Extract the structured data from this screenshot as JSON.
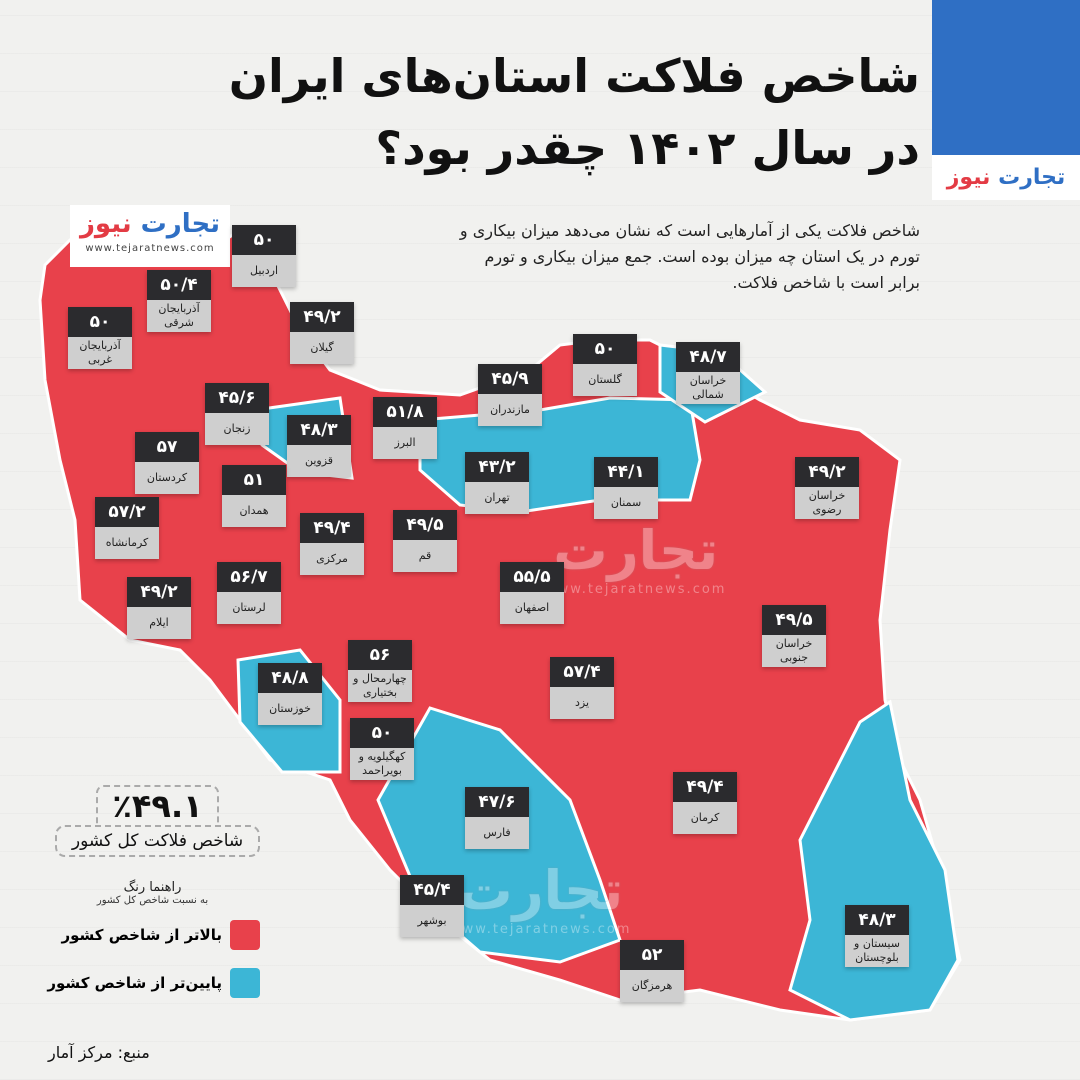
{
  "brand": {
    "logo_part1": "تجارت",
    "logo_part2": "نیوز",
    "url": "www.tejaratnews.com",
    "color_blue": "#2f6fc4",
    "color_red": "#e33b44"
  },
  "title": {
    "line1": "شاخص فلاکت استان‌های ایران",
    "line2": "در سال ۱۴۰۲ چقدر بود؟"
  },
  "description": "شاخص فلاکت یکی از آمارهایی است که نشان می‌دهد میزان بیکاری و تورم در یک استان چه میزان بوده است. جمع میزان بیکاری و تورم برابر است با شاخص فلاکت.",
  "national": {
    "value": "٪۴۹.۱",
    "label": "شاخص فلاکت کل کشور"
  },
  "legend": {
    "title": "راهنما رنگ",
    "subtitle": "به نسبت شاخص کل کشور",
    "items": [
      {
        "label": "بالاتر از شاخص کشور",
        "color": "#e8414b"
      },
      {
        "label": "پایین‌تر از شاخص کشور",
        "color": "#3cb6d6"
      }
    ]
  },
  "source": "منبع: مرکز آمار",
  "provinces": [
    {
      "name": "اردبیل",
      "value": "۵۰",
      "above": true
    },
    {
      "name": "آذربایجان شرقی",
      "value": "۵۰/۴",
      "above": true
    },
    {
      "name": "آذربایجان غربی",
      "value": "۵۰",
      "above": true
    },
    {
      "name": "گیلان",
      "value": "۴۹/۲",
      "above": true
    },
    {
      "name": "زنجان",
      "value": "۴۵/۶",
      "above": false
    },
    {
      "name": "قزوین",
      "value": "۴۸/۳",
      "above": false
    },
    {
      "name": "البرز",
      "value": "۵۱/۸",
      "above": true
    },
    {
      "name": "مازندران",
      "value": "۴۵/۹",
      "above": false
    },
    {
      "name": "گلستان",
      "value": "۵۰",
      "above": true
    },
    {
      "name": "خراسان شمالی",
      "value": "۴۸/۷",
      "above": false
    },
    {
      "name": "کردستان",
      "value": "۵۷",
      "above": true
    },
    {
      "name": "همدان",
      "value": "۵۱",
      "above": true
    },
    {
      "name": "کرمانشاه",
      "value": "۵۷/۲",
      "above": true
    },
    {
      "name": "تهران",
      "value": "۴۳/۲",
      "above": false
    },
    {
      "name": "سمنان",
      "value": "۴۴/۱",
      "above": false
    },
    {
      "name": "خراسان رضوی",
      "value": "۴۹/۲",
      "above": true
    },
    {
      "name": "مرکزی",
      "value": "۴۹/۴",
      "above": true
    },
    {
      "name": "قم",
      "value": "۴۹/۵",
      "above": true
    },
    {
      "name": "ایلام",
      "value": "۴۹/۲",
      "above": true
    },
    {
      "name": "لرستان",
      "value": "۵۶/۷",
      "above": true
    },
    {
      "name": "اصفهان",
      "value": "۵۵/۵",
      "above": true
    },
    {
      "name": "خراسان جنوبی",
      "value": "۴۹/۵",
      "above": true
    },
    {
      "name": "چهارمحال و بختیاری",
      "value": "۵۶",
      "above": true
    },
    {
      "name": "خوزستان",
      "value": "۴۸/۸",
      "above": false
    },
    {
      "name": "یزد",
      "value": "۵۷/۴",
      "above": true
    },
    {
      "name": "کهگیلویه و بویراحمد",
      "value": "۵۰",
      "above": true
    },
    {
      "name": "فارس",
      "value": "۴۷/۶",
      "above": false
    },
    {
      "name": "کرمان",
      "value": "۴۹/۴",
      "above": true
    },
    {
      "name": "بوشهر",
      "value": "۴۵/۴",
      "above": false
    },
    {
      "name": "هرمزگان",
      "value": "۵۲",
      "above": true
    },
    {
      "name": "سیستان و بلوچستان",
      "value": "۴۸/۳",
      "above": false
    }
  ]
}
